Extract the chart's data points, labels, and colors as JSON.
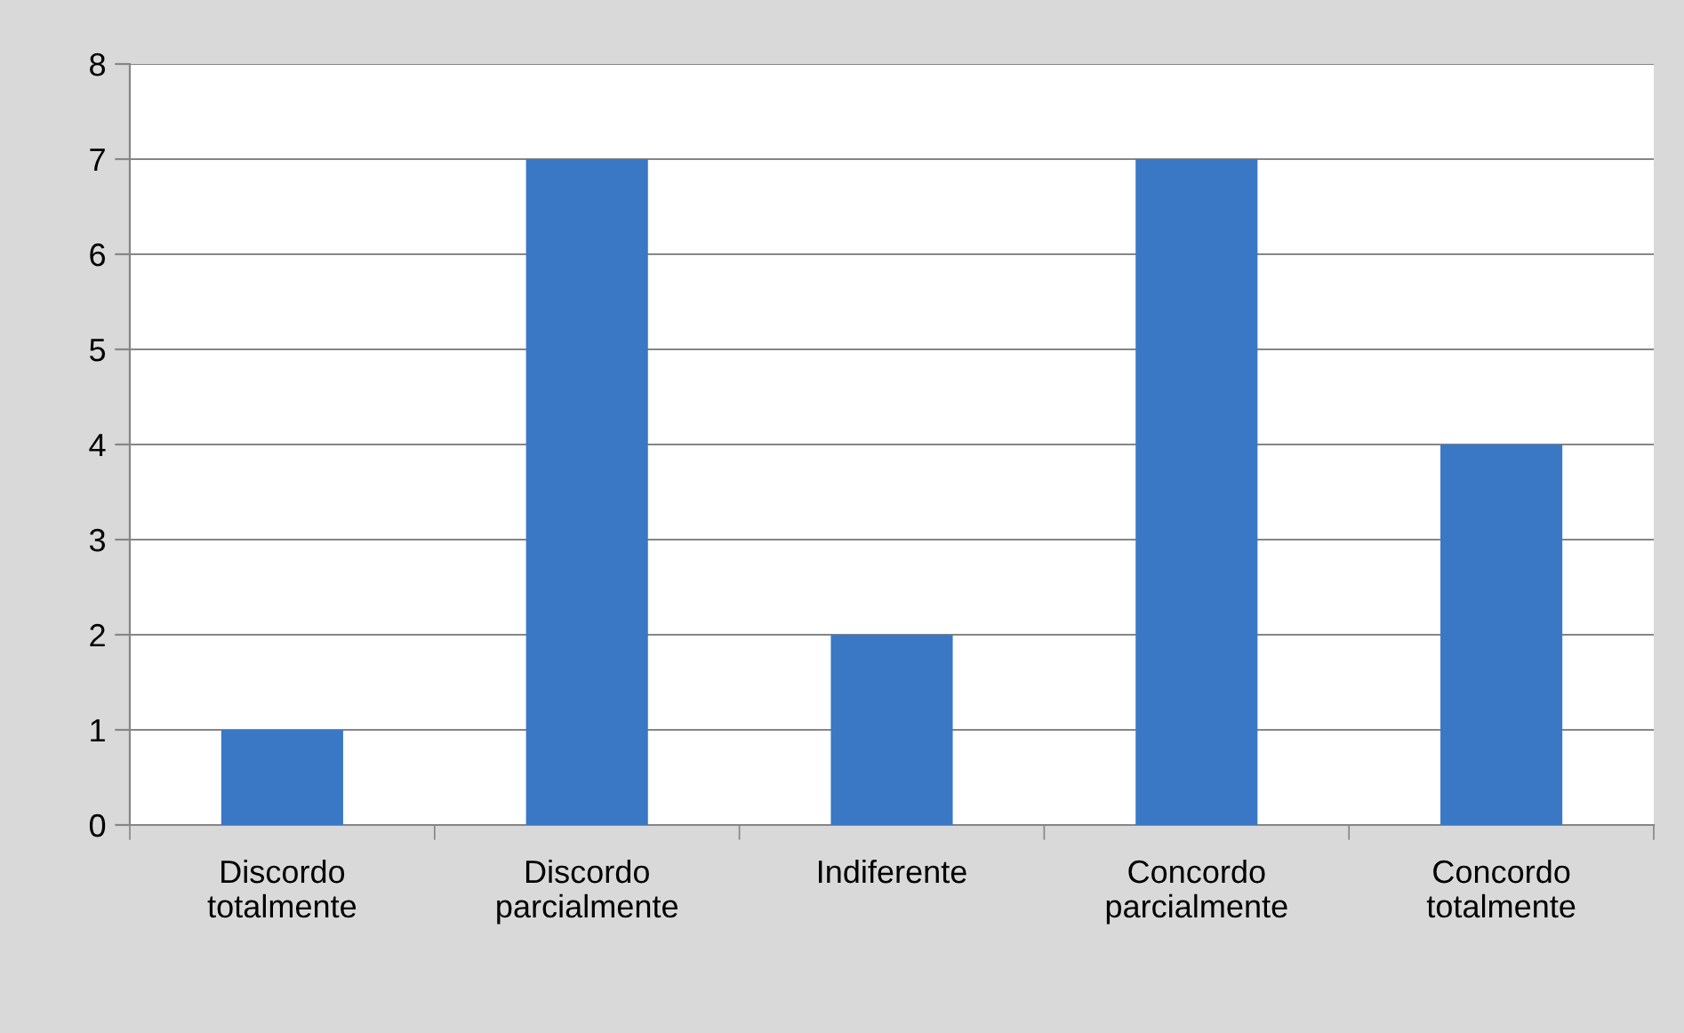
{
  "chart_data": {
    "type": "bar",
    "categories": [
      "Discordo totalmente",
      "Discordo parcialmente",
      "Indiferente",
      "Concordo parcialmente",
      "Concordo totalmente"
    ],
    "values": [
      1,
      7,
      2,
      7,
      4
    ],
    "color": "#3a78c6",
    "ylim": [
      0,
      8
    ],
    "yticks": [
      0,
      1,
      2,
      3,
      4,
      5,
      6,
      7,
      8
    ],
    "grid": "y",
    "legend": false
  }
}
